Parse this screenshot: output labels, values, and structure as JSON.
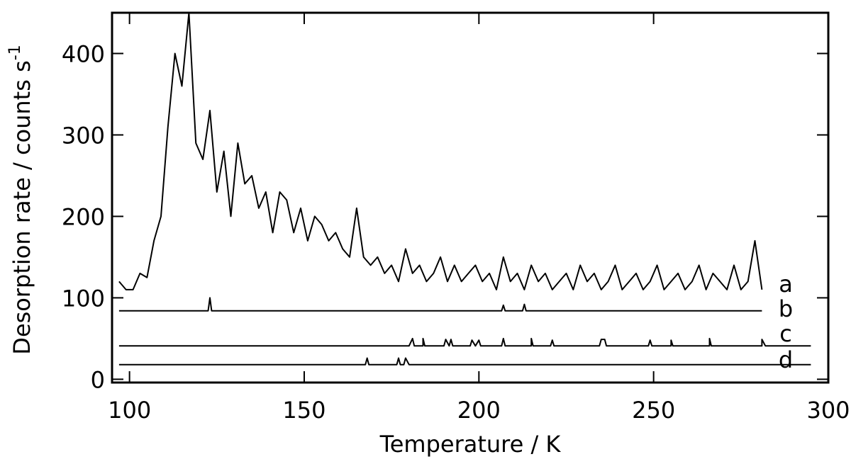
{
  "chart_data": {
    "type": "line",
    "xlabel": "Temperature / K",
    "ylabel": "Desorption rate / counts s",
    "ylabel_superscript": "-1",
    "xlim": [
      95,
      300
    ],
    "xticks": [
      100,
      150,
      200,
      250,
      300
    ],
    "ylim": [
      -4,
      450
    ],
    "yticks": [
      0,
      100,
      200,
      300,
      400
    ],
    "series": [
      {
        "name": "a",
        "color": "#000000",
        "x": [
          97,
          99,
          101,
          103,
          105,
          107,
          109,
          111,
          113,
          115,
          117,
          119,
          121,
          123,
          125,
          127,
          129,
          131,
          133,
          135,
          137,
          139,
          141,
          143,
          145,
          147,
          149,
          151,
          153,
          155,
          157,
          159,
          161,
          163,
          165,
          167,
          169,
          171,
          173,
          175,
          177,
          179,
          181,
          183,
          185,
          187,
          189,
          191,
          193,
          195,
          197,
          199,
          201,
          203,
          205,
          207,
          209,
          211,
          213,
          215,
          217,
          219,
          221,
          223,
          225,
          227,
          229,
          231,
          233,
          235,
          237,
          239,
          241,
          243,
          245,
          247,
          249,
          251,
          253,
          255,
          257,
          259,
          261,
          263,
          265,
          267,
          269,
          271,
          273,
          275,
          277,
          279,
          281
        ],
        "values": [
          120,
          110,
          110,
          130,
          125,
          170,
          200,
          310,
          400,
          360,
          450,
          290,
          270,
          330,
          230,
          280,
          200,
          290,
          240,
          250,
          210,
          230,
          180,
          230,
          220,
          180,
          210,
          170,
          200,
          190,
          170,
          180,
          160,
          150,
          210,
          150,
          140,
          150,
          130,
          140,
          120,
          160,
          130,
          140,
          120,
          130,
          150,
          120,
          140,
          120,
          130,
          140,
          120,
          130,
          110,
          150,
          120,
          130,
          110,
          140,
          120,
          130,
          110,
          120,
          130,
          110,
          140,
          120,
          130,
          110,
          120,
          140,
          110,
          120,
          130,
          110,
          120,
          140,
          110,
          120,
          130,
          110,
          120,
          140,
          110,
          130,
          120,
          110,
          140,
          110,
          120,
          170,
          110
        ]
      },
      {
        "name": "b",
        "color": "#000000",
        "x": [
          97,
          122.5,
          123,
          123.5,
          206.5,
          207,
          207.5,
          212.5,
          213,
          213.5,
          281
        ],
        "values": [
          84,
          84,
          100,
          84,
          84,
          91,
          84,
          84,
          92,
          84,
          84
        ]
      },
      {
        "name": "c",
        "color": "#000000",
        "x": [
          97,
          180,
          181,
          181.5,
          184,
          184,
          184.5,
          190,
          190.5,
          191.5,
          192,
          192.5,
          197.5,
          198,
          199,
          200,
          200.5,
          206.5,
          207,
          207.5,
          215,
          215,
          215.5,
          220.5,
          221,
          221.5,
          234.5,
          235,
          236,
          236.5,
          248.5,
          249,
          249.5,
          255,
          255,
          255.5,
          266,
          266,
          266.5,
          281,
          281,
          282,
          295
        ],
        "values": [
          41,
          41,
          50,
          41,
          41,
          50,
          41,
          41,
          49,
          41,
          49,
          41,
          41,
          48,
          41,
          48,
          41,
          41,
          50,
          41,
          41,
          50,
          41,
          41,
          48,
          41,
          41,
          49,
          49,
          41,
          41,
          48,
          41,
          41,
          48,
          41,
          41,
          50,
          41,
          41,
          49,
          41,
          41
        ]
      },
      {
        "name": "d",
        "color": "#000000",
        "x": [
          97,
          167.5,
          168,
          168.5,
          176.5,
          177,
          177.5,
          178.5,
          179,
          180,
          295
        ],
        "values": [
          18,
          18,
          26,
          18,
          18,
          26,
          18,
          18,
          26,
          18,
          18
        ]
      }
    ]
  }
}
